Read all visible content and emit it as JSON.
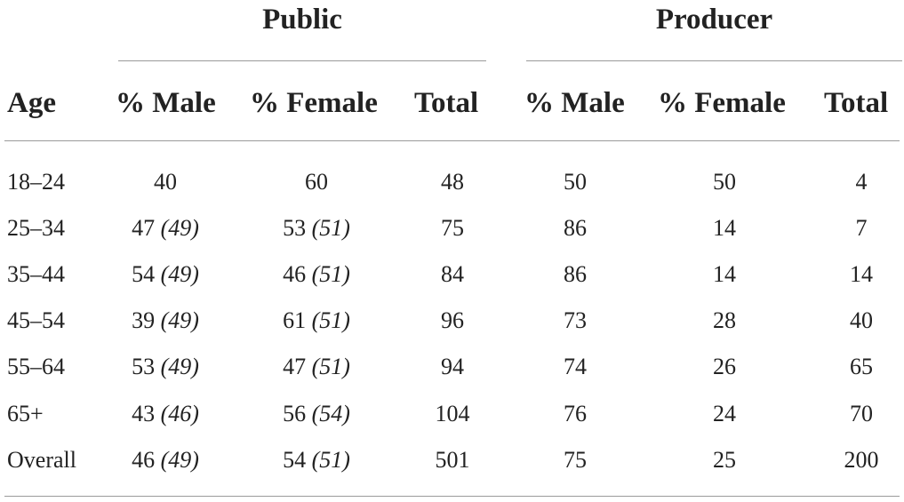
{
  "groups": {
    "public": "Public",
    "producer": "Producer"
  },
  "columns": {
    "age": "Age",
    "public_male": "% Male",
    "public_female": "% Female",
    "public_total": "Total",
    "producer_male": "% Male",
    "producer_female": "% Female",
    "producer_total": "Total"
  },
  "rows": [
    {
      "age": "18–24",
      "pm": "40",
      "pm_ref": "",
      "pf": "60",
      "pf_ref": "",
      "pt": "48",
      "rm": "50",
      "rf": "50",
      "rt": "4"
    },
    {
      "age": "25–34",
      "pm": "47",
      "pm_ref": "(49)",
      "pf": "53",
      "pf_ref": "(51)",
      "pt": "75",
      "rm": "86",
      "rf": "14",
      "rt": "7"
    },
    {
      "age": "35–44",
      "pm": "54",
      "pm_ref": "(49)",
      "pf": "46",
      "pf_ref": "(51)",
      "pt": "84",
      "rm": "86",
      "rf": "14",
      "rt": "14"
    },
    {
      "age": "45–54",
      "pm": "39",
      "pm_ref": "(49)",
      "pf": "61",
      "pf_ref": "(51)",
      "pt": "96",
      "rm": "73",
      "rf": "28",
      "rt": "40"
    },
    {
      "age": "55–64",
      "pm": "53",
      "pm_ref": "(49)",
      "pf": "47",
      "pf_ref": "(51)",
      "pt": "94",
      "rm": "74",
      "rf": "26",
      "rt": "65"
    },
    {
      "age": "65+",
      "pm": "43",
      "pm_ref": "(46)",
      "pf": "56",
      "pf_ref": "(54)",
      "pt": "104",
      "rm": "76",
      "rf": "24",
      "rt": "70"
    },
    {
      "age": "Overall",
      "pm": "46",
      "pm_ref": "(49)",
      "pf": "54",
      "pf_ref": "(51)",
      "pt": "501",
      "rm": "75",
      "rf": "25",
      "rt": "200"
    }
  ]
}
